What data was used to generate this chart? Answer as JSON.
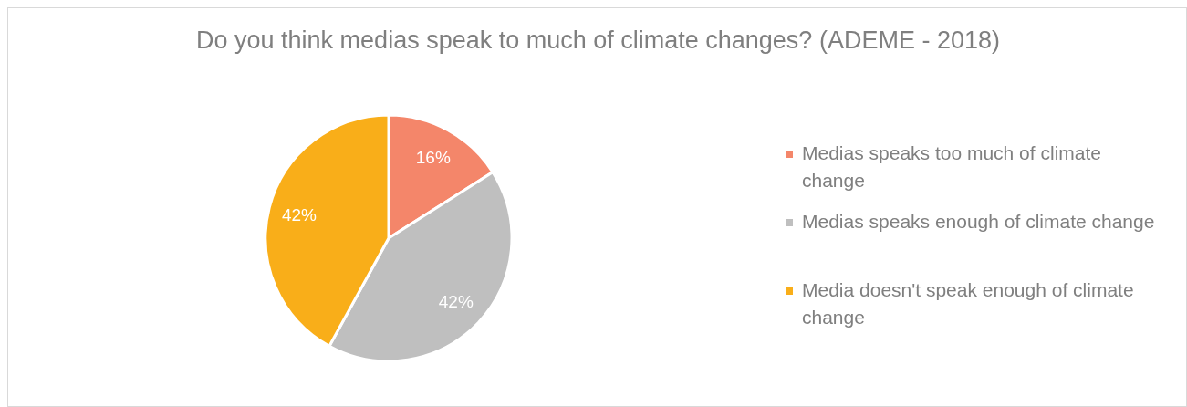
{
  "chart_data": {
    "type": "pie",
    "title": "Do you think medias speak to much of climate changes? (ADEME - 2018)",
    "categories": [
      "Medias speaks too much of climate change",
      "Medias speaks enough of climate change",
      "Media doesn't speak enough of climate change"
    ],
    "values": [
      16,
      42,
      42
    ],
    "colors": [
      "#f4866a",
      "#bfbfbf",
      "#f9ae19"
    ],
    "value_labels": [
      "16%",
      "42%",
      "42%"
    ],
    "legend": "right"
  }
}
